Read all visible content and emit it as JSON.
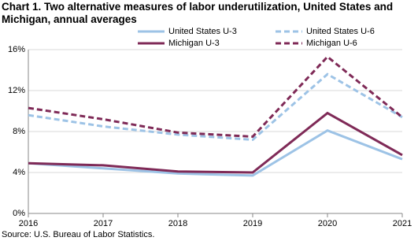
{
  "chart_data": {
    "type": "line",
    "title": "Chart 1. Two alternative measures of labor underutilization, United States and Michigan, annual averages",
    "source": "Source: U.S. Bureau of Labor Statistics.",
    "categories": [
      "2016",
      "2017",
      "2018",
      "2019",
      "2020",
      "2021"
    ],
    "series": [
      {
        "name": "United States U-3",
        "color": "#9dc3e6",
        "dashed": false,
        "values": [
          4.9,
          4.4,
          3.9,
          3.7,
          8.1,
          5.3
        ]
      },
      {
        "name": "United States U-6",
        "color": "#9dc3e6",
        "dashed": true,
        "values": [
          9.6,
          8.5,
          7.7,
          7.2,
          13.6,
          9.4
        ]
      },
      {
        "name": "Michigan U-3",
        "color": "#7f2a57",
        "dashed": false,
        "values": [
          4.9,
          4.7,
          4.1,
          4.0,
          9.8,
          5.7
        ]
      },
      {
        "name": "Michigan U-6",
        "color": "#7f2a57",
        "dashed": true,
        "values": [
          10.3,
          9.2,
          7.9,
          7.5,
          15.3,
          9.4
        ]
      }
    ],
    "ylim": [
      0,
      16
    ],
    "yticks": [
      {
        "value": 0,
        "label": "0%"
      },
      {
        "value": 4,
        "label": "4%"
      },
      {
        "value": 8,
        "label": "8%"
      },
      {
        "value": 12,
        "label": "12%"
      },
      {
        "value": 16,
        "label": "16%"
      }
    ],
    "grid": true
  }
}
